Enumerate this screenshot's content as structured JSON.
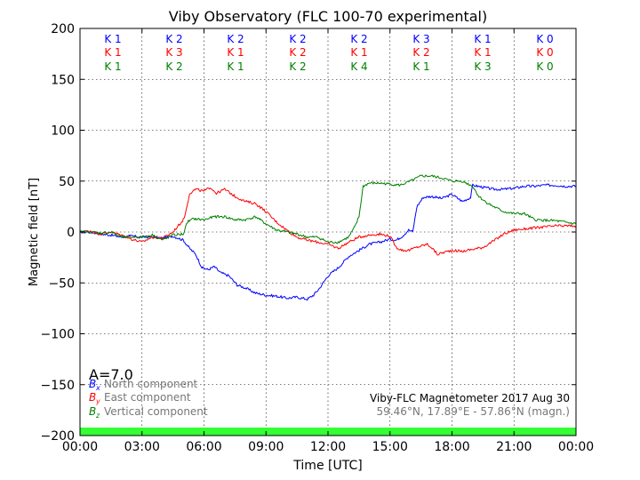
{
  "chart_data": {
    "type": "line",
    "title": "Viby Observatory (FLC 100-70 experimental)",
    "xlabel": "Time [UTC]",
    "ylabel": "Magnetic field [nT]",
    "x_ticks": [
      "00:00",
      "03:00",
      "06:00",
      "09:00",
      "12:00",
      "15:00",
      "18:00",
      "21:00",
      "00:00"
    ],
    "y_ticks": [
      "200",
      "150",
      "100",
      "50",
      "0",
      "−50",
      "−100",
      "−150",
      "−200"
    ],
    "xlim_hours": [
      0,
      24
    ],
    "ylim": [
      -200,
      200
    ],
    "grid": true,
    "legend_position": "bottom-left",
    "k_indices": {
      "colors": [
        "#0000ff",
        "#ff0000",
        "#008000"
      ],
      "rows": [
        [
          "K 1",
          "K 2",
          "K 2",
          "K 2",
          "K 2",
          "K 3",
          "K 1",
          "K 0"
        ],
        [
          "K 1",
          "K 3",
          "K 1",
          "K 2",
          "K 1",
          "K 2",
          "K 1",
          "K 0"
        ],
        [
          "K 1",
          "K 2",
          "K 1",
          "K 2",
          "K 4",
          "K 1",
          "K 3",
          "K 0"
        ]
      ]
    },
    "a_index": "A=7.0",
    "legend": [
      {
        "symbol": "B",
        "sub": "x",
        "label": "North component",
        "color": "#0000ff"
      },
      {
        "symbol": "B",
        "sub": "y",
        "label": "East component",
        "color": "#ff0000"
      },
      {
        "symbol": "B",
        "sub": "z",
        "label": "Vertical component",
        "color": "#008000"
      }
    ],
    "info_line_1": "Viby-FLC Magnetometer 2017 Aug 30",
    "info_line_2": "59.46°N, 17.89°E - 57.86°N (magn.)",
    "status_bar_color": "#33ff33",
    "series": [
      {
        "name": "North component",
        "color": "#0000ff",
        "x": [
          0,
          0.5,
          1,
          1.5,
          2,
          2.5,
          3,
          3.5,
          4,
          4.5,
          5,
          5.3,
          5.6,
          5.9,
          6.2,
          6.5,
          6.8,
          7.2,
          7.6,
          8,
          8.5,
          9,
          9.5,
          10,
          10.5,
          11,
          11.3,
          11.6,
          12,
          12.5,
          13,
          13.5,
          14,
          14.5,
          15,
          15.3,
          15.6,
          15.9,
          16.1,
          16.3,
          16.6,
          17,
          17.5,
          18,
          18.5,
          18.9,
          19,
          19.5,
          20,
          20.5,
          21,
          21.5,
          22,
          22.5,
          23,
          23.5,
          24
        ],
        "y": [
          0,
          0,
          -2,
          -3,
          -5,
          -4,
          -5,
          -5,
          -6,
          -4,
          -8,
          -16,
          -22,
          -35,
          -37,
          -34,
          -40,
          -43,
          -52,
          -55,
          -60,
          -62,
          -63,
          -65,
          -64,
          -66,
          -62,
          -55,
          -43,
          -35,
          -24,
          -18,
          -12,
          -10,
          -7,
          -8,
          -4,
          2,
          0,
          25,
          34,
          35,
          33,
          37,
          30,
          34,
          46,
          44,
          42,
          42,
          43,
          45,
          45,
          46,
          46,
          45,
          45
        ]
      },
      {
        "name": "East component",
        "color": "#ff0000",
        "x": [
          0,
          0.5,
          1,
          1.5,
          2,
          2.5,
          3,
          3.5,
          4,
          4.5,
          5,
          5.1,
          5.3,
          5.6,
          6,
          6.3,
          6.6,
          7,
          7.5,
          8,
          8.5,
          9,
          9.5,
          10,
          10.5,
          11,
          11.5,
          12,
          12.5,
          13,
          13.5,
          14,
          14.5,
          15,
          15.3,
          15.6,
          15.9,
          16.3,
          16.8,
          17,
          17.3,
          17.6,
          18,
          18.5,
          19,
          19.5,
          20,
          20.5,
          21,
          22,
          23,
          24
        ],
        "y": [
          0,
          1,
          -2,
          0,
          -3,
          -7,
          -10,
          -5,
          -6,
          0,
          12,
          18,
          38,
          42,
          40,
          44,
          38,
          42,
          35,
          30,
          28,
          20,
          10,
          2,
          -5,
          -8,
          -10,
          -12,
          -16,
          -10,
          -5,
          -3,
          -2,
          -4,
          -15,
          -18,
          -18,
          -15,
          -12,
          -15,
          -22,
          -20,
          -18,
          -19,
          -17,
          -15,
          -9,
          -2,
          2,
          4,
          6,
          6
        ]
      },
      {
        "name": "Vertical component",
        "color": "#008000",
        "x": [
          0,
          0.5,
          1,
          1.5,
          2,
          2.5,
          3,
          3.5,
          4,
          4.5,
          5,
          5.2,
          5.5,
          6,
          6.5,
          7,
          7.5,
          8,
          8.5,
          9,
          9.5,
          10,
          10.5,
          11,
          11.5,
          12,
          12.5,
          13,
          13.3,
          13.5,
          13.7,
          14,
          14.5,
          15,
          15.5,
          16,
          16.5,
          17,
          17.5,
          18,
          18.5,
          19,
          19.3,
          19.6,
          20,
          20.5,
          21,
          21.5,
          22,
          23,
          24
        ],
        "y": [
          0,
          0,
          -1,
          0,
          -5,
          -5,
          -5,
          -3,
          -8,
          -3,
          -2,
          10,
          13,
          12,
          15,
          15,
          12,
          12,
          15,
          8,
          2,
          0,
          -2,
          -5,
          -5,
          -10,
          -10,
          -5,
          5,
          15,
          45,
          48,
          48,
          47,
          46,
          50,
          55,
          55,
          53,
          50,
          50,
          45,
          35,
          30,
          25,
          20,
          18,
          18,
          12,
          11,
          8
        ]
      }
    ]
  }
}
